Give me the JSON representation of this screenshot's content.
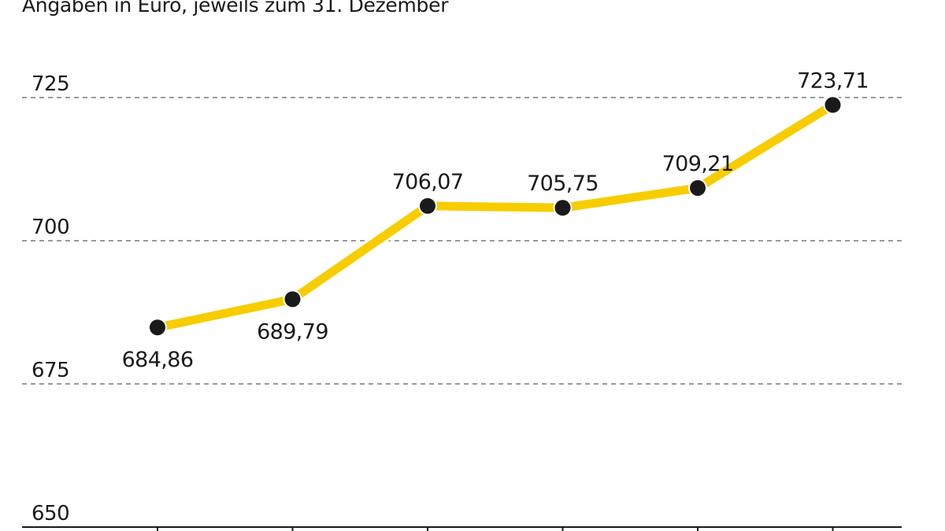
{
  "subtitle": "Angaben in Euro, jeweils zum 31. Dezember",
  "chart_data": {
    "type": "line",
    "subtitle": "Angaben in Euro, jeweils zum 31. Dezember",
    "x": [
      1,
      2,
      3,
      4,
      5,
      6
    ],
    "values": [
      684.86,
      689.79,
      706.07,
      705.75,
      709.21,
      723.71
    ],
    "value_labels": [
      "684,86",
      "689,79",
      "706,07",
      "705,75",
      "709,21",
      "723,71"
    ],
    "label_positions": [
      "below",
      "below",
      "above",
      "above",
      "above",
      "above"
    ],
    "yticks": [
      650,
      675,
      700,
      725
    ],
    "ytick_labels": [
      "650",
      "675",
      "700",
      "725"
    ],
    "ylim": [
      650,
      725
    ],
    "grid": true,
    "line_color": "#f7cd00",
    "marker_color": "#1a1a1a",
    "grid_color": "#9a9a9a"
  }
}
